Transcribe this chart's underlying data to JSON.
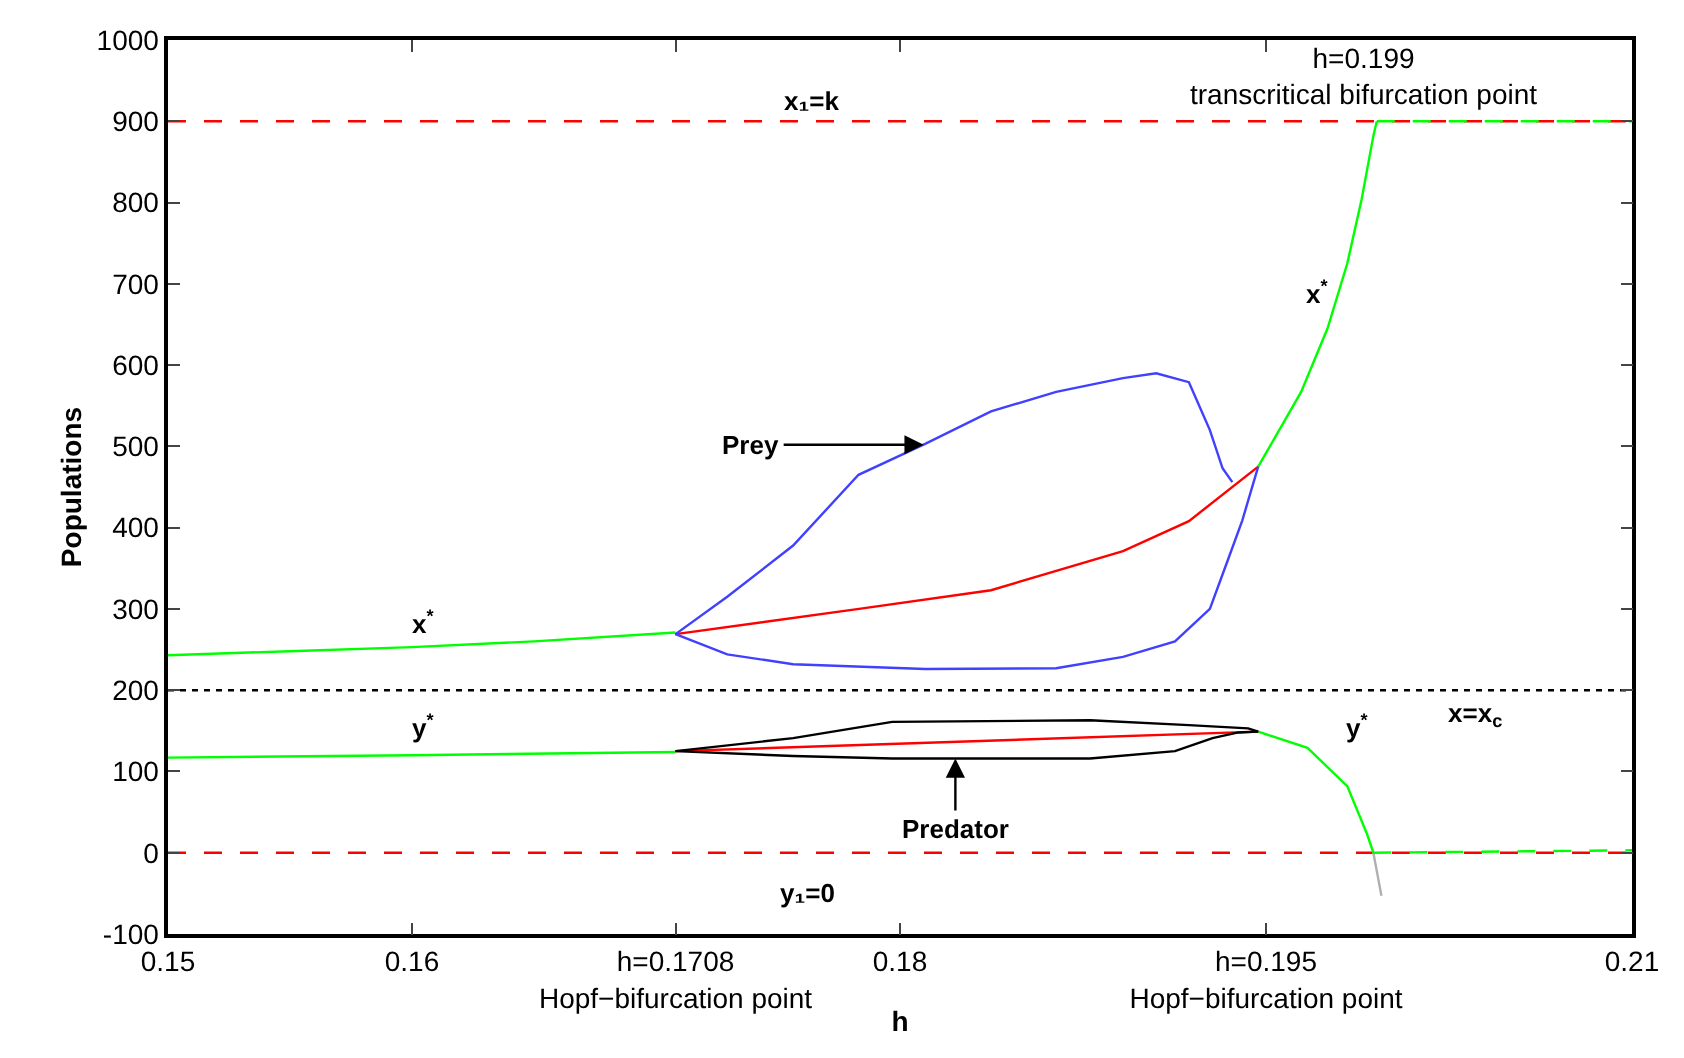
{
  "chart_data": {
    "type": "line",
    "xlabel": "h",
    "ylabel": "Populations",
    "xlim": [
      0.15,
      0.21
    ],
    "ylim": [
      -100,
      1000
    ],
    "xticks": [
      0.15,
      0.16,
      {
        "value": 0.1708,
        "label": "h=0.1708\nHopf−bifurcation point"
      },
      0.18,
      {
        "value": 0.195,
        "label": "h=0.195\nHopf−bifurcation point"
      },
      0.21
    ],
    "yticks": [
      -100,
      0,
      100,
      200,
      300,
      400,
      500,
      600,
      700,
      800,
      900,
      1000
    ],
    "series": [
      {
        "color": "#00ff00",
        "x": [
          0.15,
          0.155,
          0.16,
          0.165,
          0.1708
        ],
        "values": [
          243,
          248,
          253,
          260,
          271
        ]
      },
      {
        "color": "#00ff00",
        "x": [
          0.19468,
          0.19644,
          0.19752,
          0.19833,
          0.19892,
          0.1994,
          0.19954
        ],
        "values": [
          475,
          567,
          645,
          725,
          804,
          882,
          900
        ]
      },
      {
        "color": "#00ff00",
        "line_style": "dashed",
        "x": [
          0.19954,
          0.21
        ],
        "values": [
          900,
          900
        ]
      },
      {
        "color": "#ff0000",
        "x": [
          0.1708,
          0.17832,
          0.18373,
          0.18914,
          0.19184,
          0.19468
        ],
        "values": [
          269,
          300,
          323,
          371,
          408,
          475
        ]
      },
      {
        "color": "#4040ff",
        "x": [
          0.19468,
          0.19403,
          0.19346,
          0.1927,
          0.19127,
          0.18914,
          0.1864,
          0.18103,
          0.17562,
          0.17292,
          0.1708,
          0.17292,
          0.17562,
          0.1783,
          0.18103,
          0.18373,
          0.1864,
          0.18914,
          0.1905,
          0.19184,
          0.1927,
          0.19322,
          0.19362
        ],
        "values": [
          475,
          409,
          362,
          300,
          260,
          241,
          227,
          226,
          232,
          244,
          269,
          315,
          378,
          465,
          503,
          543,
          567,
          584,
          590,
          579,
          520,
          473,
          456
        ]
      },
      {
        "color": "#00ff00",
        "x": [
          0.15,
          0.16,
          0.1708
        ],
        "values": [
          117,
          120,
          124
        ]
      },
      {
        "color": "#00ff00",
        "x": [
          0.19468,
          0.1967,
          0.19833,
          0.19914,
          0.1994
        ],
        "values": [
          149,
          129,
          82,
          23,
          0
        ]
      },
      {
        "color": "#b0b0b0",
        "x": [
          0.1994,
          0.19973
        ],
        "values": [
          0,
          -53
        ]
      },
      {
        "color": "#00ff00",
        "line_style": "dashed",
        "x": [
          0.1994,
          0.21
        ],
        "values": [
          0,
          3
        ]
      },
      {
        "color": "#ff0000",
        "x": [
          0.1708,
          0.19468
        ],
        "values": [
          125,
          149
        ]
      },
      {
        "color": "#000000",
        "x": [
          0.1708,
          0.17562,
          0.17968,
          0.18779,
          0.19127,
          0.19281,
          0.19387,
          0.19468
        ],
        "values": [
          125,
          119,
          116,
          116,
          125,
          141,
          148,
          149
        ]
      },
      {
        "color": "#000000",
        "x": [
          0.1708,
          0.17562,
          0.17968,
          0.18779,
          0.19184,
          0.19427,
          0.19468
        ],
        "values": [
          125,
          141,
          161,
          163,
          157,
          153,
          149
        ]
      }
    ],
    "ref_lines": [
      {
        "axis": "y",
        "value": 900,
        "color": "#ff0000",
        "line_style": "dashed"
      },
      {
        "axis": "y",
        "value": 0,
        "color": "#ff0000",
        "line_style": "dashed"
      },
      {
        "axis": "y",
        "value": 200,
        "color": "#000000",
        "line_style": "dotted"
      }
    ],
    "annotations": [
      "x₁=k",
      "x$^{*}$",
      "y$^{*}$",
      "x$^{*}$",
      "y$^{*}$",
      "x=x$_{c}$",
      "y₁=0",
      "h=0.199\ntranscritical bifurcation point",
      {
        "text": "Prey",
        "x": 0.18097,
        "y": 502
      },
      {
        "text": "Predator",
        "x": 0.18227,
        "y": 116
      }
    ]
  }
}
